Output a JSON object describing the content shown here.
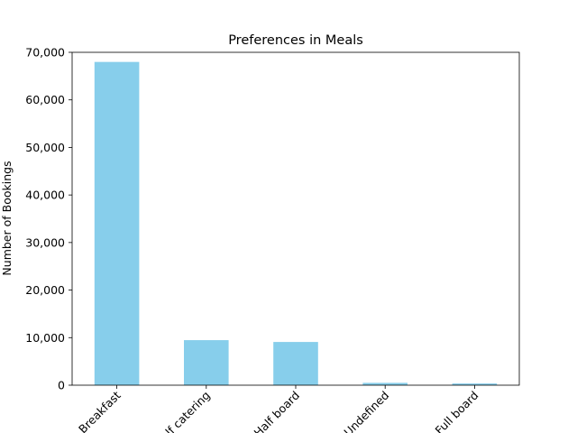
{
  "chart_data": {
    "type": "bar",
    "title": "Preferences in Meals",
    "xlabel": "",
    "ylabel": "Number of Bookings",
    "categories": [
      "Breakfast",
      "Self catering",
      "Half board",
      "Undefined",
      "Full board"
    ],
    "values": [
      67978,
      9473,
      9088,
      492,
      360
    ],
    "ylim": [
      0,
      70000
    ],
    "yticks": [
      0,
      10000,
      20000,
      30000,
      40000,
      50000,
      60000,
      70000
    ],
    "ytick_labels": [
      "0",
      "10,000",
      "20,000",
      "30,000",
      "40,000",
      "50,000",
      "60,000",
      "70,000"
    ],
    "bar_color": "#87ceeb",
    "grid": false,
    "legend": "none",
    "xtick_rotation": 45
  }
}
